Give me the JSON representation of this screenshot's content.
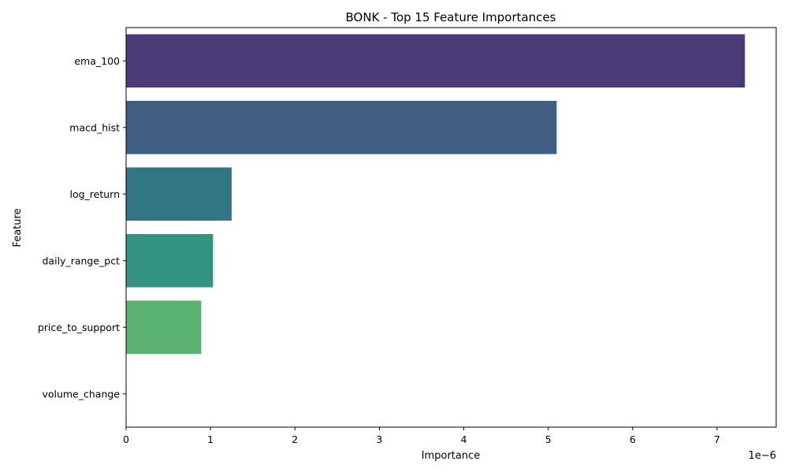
{
  "chart_data": {
    "type": "bar",
    "orientation": "horizontal",
    "title": "BONK - Top 15 Feature Importances",
    "xlabel": "Importance",
    "ylabel": "Feature",
    "x_offset_label": "1e−6",
    "x_scale_multiplier": 1e-06,
    "xlim": [
      0,
      7.7
    ],
    "xticks": [
      0,
      1,
      2,
      3,
      4,
      5,
      6,
      7
    ],
    "grid": false,
    "legend": "none",
    "categories": [
      "ema_100",
      "macd_hist",
      "log_return",
      "daily_range_pct",
      "price_to_support",
      "volume_change"
    ],
    "values": [
      7.33,
      5.1,
      1.25,
      1.03,
      0.89,
      0.0
    ],
    "colors": [
      "#4a3b78",
      "#405e82",
      "#327583",
      "#329381",
      "#5bb372",
      "#a8d34c"
    ]
  }
}
